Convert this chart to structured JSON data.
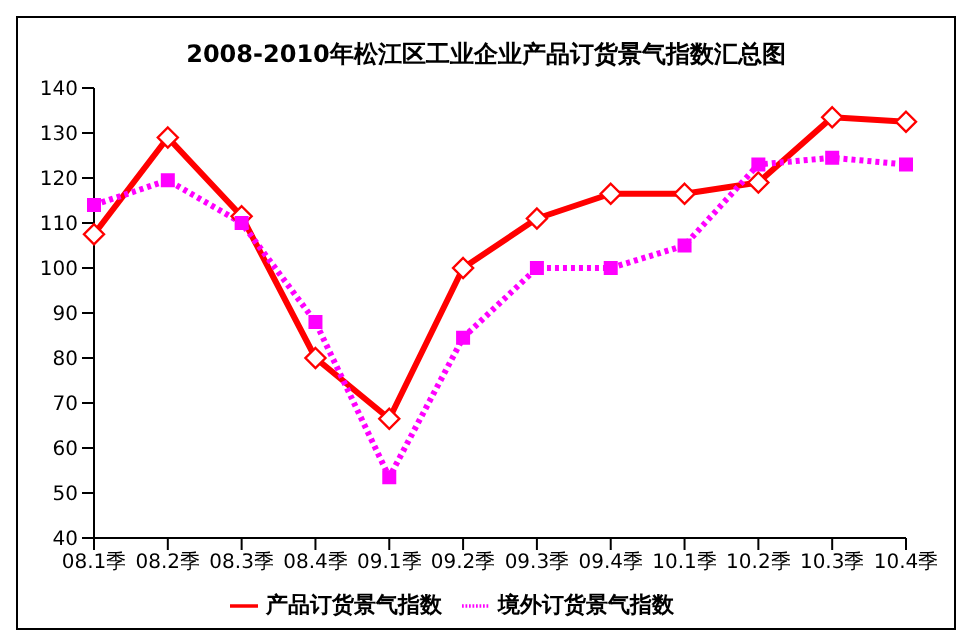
{
  "chart_data": {
    "type": "line",
    "title": "2008-2010年松江区工业企业产品订货景气指数汇总图",
    "categories": [
      "08.1季",
      "08.2季",
      "08.3季",
      "08.4季",
      "09.1季",
      "09.2季",
      "09.3季",
      "09.4季",
      "10.1季",
      "10.2季",
      "10.3季",
      "10.4季"
    ],
    "series": [
      {
        "name": "产品订货景气指数",
        "color": "#ff0000",
        "marker": "diamond",
        "line_style": "solid",
        "values": [
          107.5,
          129,
          111.5,
          80,
          66.5,
          100,
          111,
          116.5,
          116.5,
          119,
          133.5,
          132.5
        ]
      },
      {
        "name": "境外订货景气指数",
        "color": "#ff00ff",
        "marker": "square",
        "line_style": "dotted",
        "values": [
          114,
          119.5,
          110,
          88,
          53.5,
          84.5,
          100,
          100,
          105,
          123,
          124.5,
          123
        ]
      }
    ],
    "ylim": [
      40,
      140
    ],
    "yticks": [
      40,
      50,
      60,
      70,
      80,
      90,
      100,
      110,
      120,
      130,
      140
    ],
    "grid": false,
    "legend": "bottom"
  }
}
